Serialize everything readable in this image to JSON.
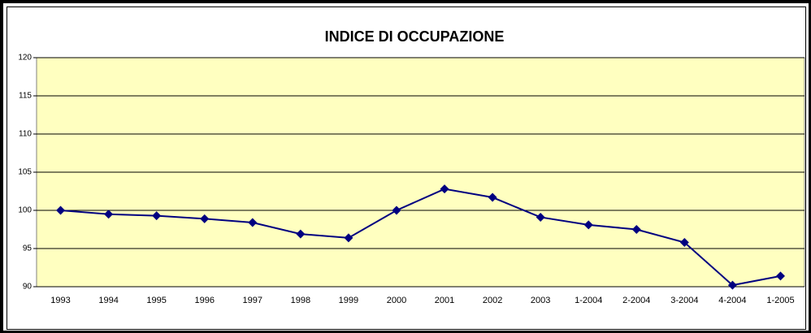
{
  "chart_data": {
    "type": "line",
    "title": "INDICE DI OCCUPAZIONE",
    "categories": [
      "1993",
      "1994",
      "1995",
      "1996",
      "1997",
      "1998",
      "1999",
      "2000",
      "2001",
      "2002",
      "2003",
      "1-2004",
      "2-2004",
      "3-2004",
      "4-2004",
      "1-2005"
    ],
    "series": [
      {
        "name": "INDICE DI OCCUPAZIONE",
        "color": "#000080",
        "values": [
          100,
          99.5,
          99.3,
          98.9,
          98.4,
          96.9,
          96.4,
          100,
          102.8,
          101.7,
          99.1,
          98.1,
          97.5,
          95.8,
          90.2,
          91.4
        ]
      }
    ],
    "ylim": [
      90,
      120
    ],
    "yticks": [
      90,
      95,
      100,
      105,
      110,
      115,
      120
    ],
    "grid": true,
    "plot_color": "#ffffc0"
  }
}
